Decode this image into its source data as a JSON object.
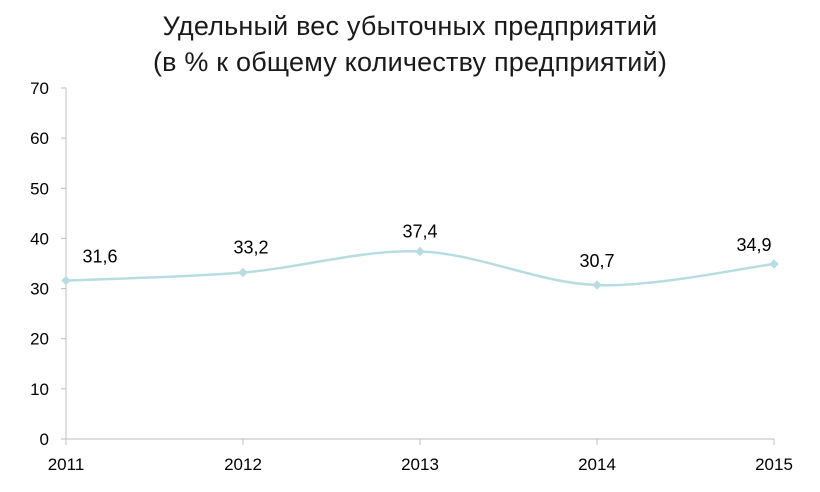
{
  "chart_data": {
    "type": "line",
    "title_line1": "Удельный вес убыточных предприятий",
    "title_line2": "(в % к общему количеству предприятий)",
    "xlabel": "",
    "ylabel": "",
    "categories": [
      "2011",
      "2012",
      "2013",
      "2014",
      "2015"
    ],
    "series": [
      {
        "values": [
          31.6,
          33.2,
          37.4,
          30.7,
          34.9
        ],
        "labels": [
          "31,6",
          "33,2",
          "37,4",
          "30,7",
          "34,9"
        ],
        "color": "#b7dde0",
        "smooth": true,
        "marker": "diamond"
      }
    ],
    "ylim": [
      0,
      70
    ],
    "yticks": [
      "0",
      "10",
      "20",
      "30",
      "40",
      "50",
      "60",
      "70"
    ],
    "grid": false,
    "legend": "none"
  }
}
